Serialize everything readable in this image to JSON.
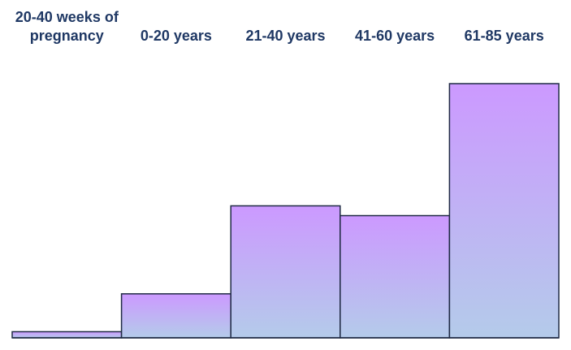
{
  "chart_data": {
    "type": "bar",
    "categories": [
      "20-40 weeks of pregnancy",
      "0-20 years",
      "21-40 years",
      "41-60 years",
      "61-85 years"
    ],
    "values": [
      2.5,
      18,
      54,
      50,
      104
    ],
    "title": "",
    "xlabel": "",
    "ylabel": "",
    "ylim": [
      0,
      104
    ],
    "grid": false,
    "legend": "none",
    "bar_gap": "none",
    "colors": {
      "bar_top": "#cc99ff",
      "bar_bottom": "#b4cbea",
      "bar_stroke": "#1f2a44",
      "label_text": "#1f3864"
    }
  }
}
